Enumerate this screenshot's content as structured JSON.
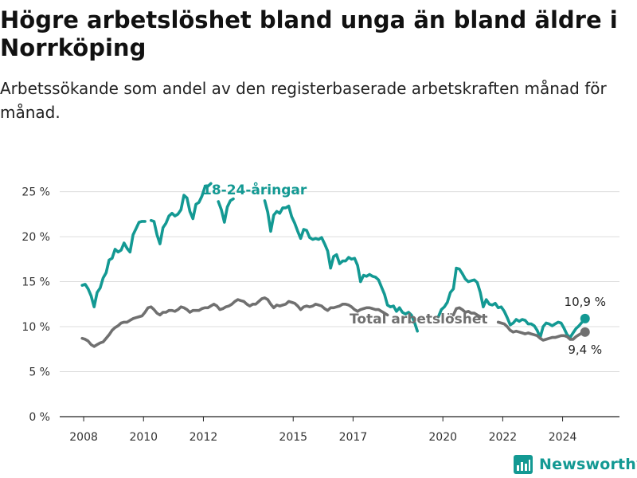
{
  "header": {
    "title": "Högre arbetslöshet bland unga än bland äldre i Norrköping",
    "subtitle": "Arbetssökande som andel av den registerbaserade arbetskraften månad för månad."
  },
  "brand": {
    "name": "Newsworthy",
    "color": "#139993"
  },
  "chart_data": {
    "type": "line",
    "title": "Högre arbetslöshet bland unga än bland äldre i Norrköping",
    "subtitle": "Arbetssökande som andel av den registerbaserade arbetskraften månad för månad.",
    "xlabel": "",
    "ylabel": "",
    "xlim": [
      2007.2,
      2025.9
    ],
    "ylim": [
      0,
      27
    ],
    "x_ticks": [
      2008,
      2010,
      2012,
      2015,
      2017,
      2020,
      2022,
      2024
    ],
    "x_tick_labels": [
      "2008",
      "2010",
      "2012",
      "2015",
      "2017",
      "2020",
      "2022",
      "2024"
    ],
    "y_ticks": [
      0,
      5,
      10,
      15,
      20,
      25
    ],
    "y_tick_labels": [
      "0 %",
      "5 %",
      "10 %",
      "15 %",
      "20 %",
      "25 %"
    ],
    "grid": "horizontal",
    "series": [
      {
        "name": "18-24-åringar",
        "color": "#139993",
        "end_label": "10,9 %",
        "points": [
          [
            2007.95,
            14.6
          ],
          [
            2008.05,
            14.7
          ],
          [
            2008.15,
            14.2
          ],
          [
            2008.25,
            13.4
          ],
          [
            2008.35,
            12.2
          ],
          [
            2008.45,
            13.8
          ],
          [
            2008.55,
            14.3
          ],
          [
            2008.65,
            15.4
          ],
          [
            2008.75,
            16.0
          ],
          [
            2008.85,
            17.4
          ],
          [
            2008.95,
            17.6
          ],
          [
            2009.05,
            18.6
          ],
          [
            2009.15,
            18.3
          ],
          [
            2009.25,
            18.5
          ],
          [
            2009.35,
            19.3
          ],
          [
            2009.45,
            18.7
          ],
          [
            2009.55,
            18.3
          ],
          [
            2009.65,
            20.2
          ],
          [
            2009.75,
            20.9
          ],
          [
            2009.85,
            21.6
          ],
          [
            2009.95,
            21.7
          ],
          [
            2010.05,
            21.7
          ],
          [
            2010.25,
            21.8
          ],
          [
            2010.35,
            21.7
          ],
          [
            2010.45,
            20.2
          ],
          [
            2010.55,
            19.2
          ],
          [
            2010.65,
            21.0
          ],
          [
            2010.75,
            21.5
          ],
          [
            2010.85,
            22.3
          ],
          [
            2010.95,
            22.6
          ],
          [
            2011.05,
            22.3
          ],
          [
            2011.15,
            22.5
          ],
          [
            2011.25,
            23.0
          ],
          [
            2011.35,
            24.6
          ],
          [
            2011.45,
            24.3
          ],
          [
            2011.55,
            22.8
          ],
          [
            2011.65,
            22.0
          ],
          [
            2011.75,
            23.6
          ],
          [
            2011.85,
            23.8
          ],
          [
            2011.95,
            24.5
          ],
          [
            2012.05,
            25.5
          ],
          [
            2012.15,
            25.6
          ],
          [
            2012.25,
            25.9
          ],
          [
            2012.5,
            23.9
          ],
          [
            2012.6,
            23.0
          ],
          [
            2012.7,
            21.6
          ],
          [
            2012.8,
            23.3
          ],
          [
            2012.9,
            24.0
          ],
          [
            2013.0,
            24.2
          ],
          [
            2014.05,
            24.0
          ],
          [
            2014.15,
            22.7
          ],
          [
            2014.25,
            20.6
          ],
          [
            2014.35,
            22.4
          ],
          [
            2014.45,
            22.8
          ],
          [
            2014.55,
            22.6
          ],
          [
            2014.65,
            23.2
          ],
          [
            2014.75,
            23.2
          ],
          [
            2014.85,
            23.4
          ],
          [
            2014.95,
            22.2
          ],
          [
            2015.05,
            21.5
          ],
          [
            2015.15,
            20.6
          ],
          [
            2015.25,
            19.8
          ],
          [
            2015.35,
            20.8
          ],
          [
            2015.45,
            20.7
          ],
          [
            2015.55,
            19.9
          ],
          [
            2015.65,
            19.7
          ],
          [
            2015.75,
            19.8
          ],
          [
            2015.85,
            19.7
          ],
          [
            2015.95,
            19.9
          ],
          [
            2016.05,
            19.2
          ],
          [
            2016.15,
            18.4
          ],
          [
            2016.25,
            16.5
          ],
          [
            2016.35,
            17.8
          ],
          [
            2016.45,
            18.0
          ],
          [
            2016.55,
            17.0
          ],
          [
            2016.65,
            17.3
          ],
          [
            2016.75,
            17.3
          ],
          [
            2016.85,
            17.7
          ],
          [
            2016.95,
            17.5
          ],
          [
            2017.05,
            17.6
          ],
          [
            2017.15,
            16.8
          ],
          [
            2017.25,
            15.0
          ],
          [
            2017.35,
            15.7
          ],
          [
            2017.45,
            15.6
          ],
          [
            2017.55,
            15.8
          ],
          [
            2017.65,
            15.6
          ],
          [
            2017.75,
            15.5
          ],
          [
            2017.85,
            15.2
          ],
          [
            2017.95,
            14.4
          ],
          [
            2018.05,
            13.6
          ],
          [
            2018.15,
            12.4
          ],
          [
            2018.25,
            12.2
          ],
          [
            2018.35,
            12.3
          ],
          [
            2018.45,
            11.7
          ],
          [
            2018.55,
            12.1
          ],
          [
            2018.65,
            11.6
          ],
          [
            2018.75,
            11.4
          ],
          [
            2018.85,
            11.6
          ],
          [
            2018.95,
            11.3
          ],
          [
            2019.05,
            10.5
          ],
          [
            2019.15,
            9.5
          ],
          [
            2019.85,
            11.1
          ],
          [
            2019.95,
            11.9
          ],
          [
            2020.05,
            12.2
          ],
          [
            2020.15,
            12.7
          ],
          [
            2020.25,
            13.8
          ],
          [
            2020.35,
            14.2
          ],
          [
            2020.45,
            16.5
          ],
          [
            2020.55,
            16.4
          ],
          [
            2020.65,
            15.9
          ],
          [
            2020.75,
            15.3
          ],
          [
            2020.85,
            15.0
          ],
          [
            2020.95,
            15.1
          ],
          [
            2021.05,
            15.2
          ],
          [
            2021.15,
            14.9
          ],
          [
            2021.25,
            13.8
          ],
          [
            2021.35,
            12.2
          ],
          [
            2021.45,
            13.0
          ],
          [
            2021.55,
            12.5
          ],
          [
            2021.65,
            12.4
          ],
          [
            2021.75,
            12.6
          ],
          [
            2021.85,
            12.1
          ],
          [
            2021.95,
            12.2
          ],
          [
            2022.05,
            11.7
          ],
          [
            2022.15,
            11.0
          ],
          [
            2022.25,
            10.2
          ],
          [
            2022.35,
            10.4
          ],
          [
            2022.45,
            10.8
          ],
          [
            2022.55,
            10.6
          ],
          [
            2022.65,
            10.8
          ],
          [
            2022.75,
            10.7
          ],
          [
            2022.85,
            10.3
          ],
          [
            2022.95,
            10.3
          ],
          [
            2023.05,
            10.1
          ],
          [
            2023.15,
            9.6
          ],
          [
            2023.25,
            8.8
          ],
          [
            2023.35,
            10.0
          ],
          [
            2023.45,
            10.4
          ],
          [
            2023.55,
            10.3
          ],
          [
            2023.65,
            10.1
          ],
          [
            2023.75,
            10.3
          ],
          [
            2023.85,
            10.5
          ],
          [
            2023.95,
            10.4
          ],
          [
            2024.05,
            9.8
          ],
          [
            2024.15,
            9.1
          ],
          [
            2024.25,
            8.8
          ],
          [
            2024.35,
            9.3
          ],
          [
            2024.45,
            9.8
          ],
          [
            2024.55,
            10.1
          ],
          [
            2024.65,
            10.5
          ],
          [
            2024.75,
            10.9
          ]
        ]
      },
      {
        "name": "Total arbetslöshet",
        "color": "#707070",
        "end_label": "9,4 %",
        "points": [
          [
            2007.95,
            8.7
          ],
          [
            2008.05,
            8.6
          ],
          [
            2008.15,
            8.4
          ],
          [
            2008.25,
            8.0
          ],
          [
            2008.35,
            7.8
          ],
          [
            2008.45,
            8.0
          ],
          [
            2008.55,
            8.2
          ],
          [
            2008.65,
            8.3
          ],
          [
            2008.75,
            8.7
          ],
          [
            2008.85,
            9.1
          ],
          [
            2008.95,
            9.6
          ],
          [
            2009.05,
            9.9
          ],
          [
            2009.15,
            10.1
          ],
          [
            2009.25,
            10.4
          ],
          [
            2009.35,
            10.5
          ],
          [
            2009.45,
            10.5
          ],
          [
            2009.55,
            10.7
          ],
          [
            2009.65,
            10.9
          ],
          [
            2009.75,
            11.0
          ],
          [
            2009.85,
            11.1
          ],
          [
            2009.95,
            11.2
          ],
          [
            2010.05,
            11.6
          ],
          [
            2010.15,
            12.1
          ],
          [
            2010.25,
            12.2
          ],
          [
            2010.35,
            11.9
          ],
          [
            2010.45,
            11.5
          ],
          [
            2010.55,
            11.3
          ],
          [
            2010.65,
            11.6
          ],
          [
            2010.75,
            11.6
          ],
          [
            2010.85,
            11.8
          ],
          [
            2010.95,
            11.8
          ],
          [
            2011.05,
            11.7
          ],
          [
            2011.15,
            11.9
          ],
          [
            2011.25,
            12.2
          ],
          [
            2011.35,
            12.1
          ],
          [
            2011.45,
            11.9
          ],
          [
            2011.55,
            11.6
          ],
          [
            2011.65,
            11.8
          ],
          [
            2011.75,
            11.8
          ],
          [
            2011.85,
            11.8
          ],
          [
            2011.95,
            12.0
          ],
          [
            2012.05,
            12.1
          ],
          [
            2012.15,
            12.1
          ],
          [
            2012.25,
            12.3
          ],
          [
            2012.35,
            12.5
          ],
          [
            2012.45,
            12.3
          ],
          [
            2012.55,
            11.9
          ],
          [
            2012.65,
            12.0
          ],
          [
            2012.75,
            12.2
          ],
          [
            2012.85,
            12.3
          ],
          [
            2012.95,
            12.5
          ],
          [
            2013.05,
            12.8
          ],
          [
            2013.15,
            13.0
          ],
          [
            2013.25,
            12.9
          ],
          [
            2013.35,
            12.8
          ],
          [
            2013.45,
            12.5
          ],
          [
            2013.55,
            12.3
          ],
          [
            2013.65,
            12.5
          ],
          [
            2013.75,
            12.5
          ],
          [
            2013.85,
            12.8
          ],
          [
            2013.95,
            13.1
          ],
          [
            2014.05,
            13.2
          ],
          [
            2014.15,
            13.0
          ],
          [
            2014.25,
            12.5
          ],
          [
            2014.35,
            12.1
          ],
          [
            2014.45,
            12.4
          ],
          [
            2014.55,
            12.3
          ],
          [
            2014.65,
            12.4
          ],
          [
            2014.75,
            12.5
          ],
          [
            2014.85,
            12.8
          ],
          [
            2014.95,
            12.7
          ],
          [
            2015.05,
            12.6
          ],
          [
            2015.15,
            12.3
          ],
          [
            2015.25,
            11.9
          ],
          [
            2015.35,
            12.2
          ],
          [
            2015.45,
            12.3
          ],
          [
            2015.55,
            12.2
          ],
          [
            2015.65,
            12.3
          ],
          [
            2015.75,
            12.5
          ],
          [
            2015.85,
            12.4
          ],
          [
            2015.95,
            12.3
          ],
          [
            2016.05,
            12.0
          ],
          [
            2016.15,
            11.8
          ],
          [
            2016.25,
            12.1
          ],
          [
            2016.35,
            12.1
          ],
          [
            2016.45,
            12.2
          ],
          [
            2016.55,
            12.3
          ],
          [
            2016.65,
            12.5
          ],
          [
            2016.75,
            12.5
          ],
          [
            2016.85,
            12.4
          ],
          [
            2016.95,
            12.2
          ],
          [
            2017.05,
            11.9
          ],
          [
            2017.15,
            11.7
          ],
          [
            2017.25,
            11.9
          ],
          [
            2017.35,
            12.0
          ],
          [
            2017.45,
            12.1
          ],
          [
            2017.55,
            12.1
          ],
          [
            2017.65,
            12.0
          ],
          [
            2017.75,
            11.9
          ],
          [
            2017.85,
            11.9
          ],
          [
            2017.95,
            11.7
          ],
          [
            2018.05,
            11.5
          ],
          [
            2018.15,
            11.3
          ],
          [
            2020.35,
            11.3
          ],
          [
            2020.45,
            12.0
          ],
          [
            2020.55,
            12.1
          ],
          [
            2020.65,
            11.9
          ],
          [
            2020.75,
            11.6
          ],
          [
            2020.85,
            11.7
          ],
          [
            2020.95,
            11.5
          ],
          [
            2021.05,
            11.5
          ],
          [
            2021.15,
            11.3
          ],
          [
            2021.25,
            11.1
          ],
          [
            2021.85,
            10.5
          ],
          [
            2021.95,
            10.4
          ],
          [
            2022.05,
            10.3
          ],
          [
            2022.15,
            10.0
          ],
          [
            2022.25,
            9.6
          ],
          [
            2022.35,
            9.4
          ],
          [
            2022.45,
            9.5
          ],
          [
            2022.55,
            9.4
          ],
          [
            2022.65,
            9.3
          ],
          [
            2022.75,
            9.2
          ],
          [
            2022.85,
            9.3
          ],
          [
            2022.95,
            9.2
          ],
          [
            2023.05,
            9.1
          ],
          [
            2023.15,
            9.0
          ],
          [
            2023.25,
            8.7
          ],
          [
            2023.35,
            8.5
          ],
          [
            2023.45,
            8.6
          ],
          [
            2023.55,
            8.7
          ],
          [
            2023.65,
            8.8
          ],
          [
            2023.75,
            8.8
          ],
          [
            2023.85,
            8.9
          ],
          [
            2023.95,
            9.0
          ],
          [
            2024.05,
            9.0
          ],
          [
            2024.15,
            8.9
          ],
          [
            2024.25,
            8.6
          ],
          [
            2024.35,
            8.6
          ],
          [
            2024.45,
            8.9
          ],
          [
            2024.55,
            9.1
          ],
          [
            2024.65,
            9.3
          ],
          [
            2024.75,
            9.4
          ]
        ]
      }
    ]
  }
}
